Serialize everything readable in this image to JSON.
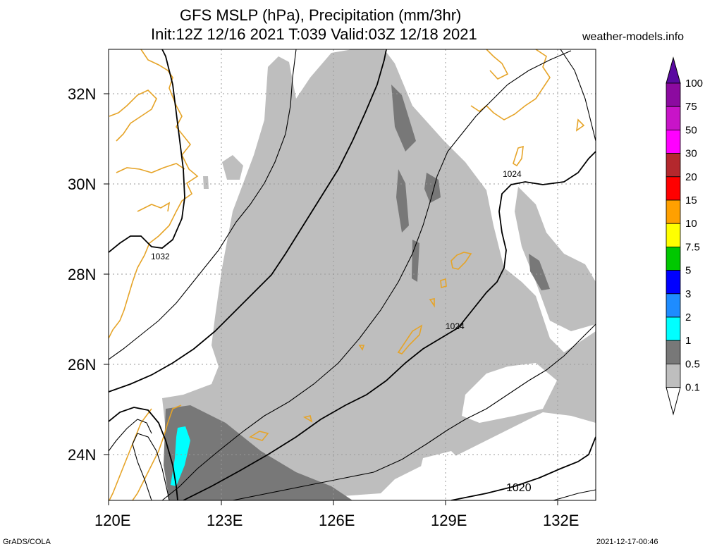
{
  "title": {
    "line1": "GFS MSLP (hPa), Precipitation (mm/3hr)",
    "line2": "Init:12Z 12/16 2021 T:039 Valid:03Z 12/18 2021",
    "site": "weather-models.info"
  },
  "footer": {
    "left": "GrADS/COLA",
    "right": "2021-12-17-00:46"
  },
  "axes": {
    "x_ticks": [
      "120E",
      "123E",
      "126E",
      "129E",
      "132E"
    ],
    "y_ticks": [
      "32N",
      "30N",
      "28N",
      "26N",
      "24N"
    ],
    "lon_range": [
      120,
      133
    ],
    "lat_range": [
      23,
      33
    ]
  },
  "colorbar": {
    "levels": [
      "100",
      "75",
      "50",
      "30",
      "20",
      "15",
      "10",
      "7.5",
      "5",
      "3",
      "2",
      "1",
      "0.5",
      "0.1"
    ],
    "colors": [
      "#5a0aa0",
      "#8c0aa0",
      "#c814c8",
      "#ff00ff",
      "#b4282d",
      "#ff0000",
      "#ffa000",
      "#ffff00",
      "#00c800",
      "#0000ff",
      "#1e8cff",
      "#00ffff",
      "#787878",
      "#bebebe",
      "#ffffff"
    ]
  },
  "isobar_labels": [
    "1032",
    "1024",
    "1024",
    "1020"
  ],
  "colors": {
    "coast": "#e6a428",
    "precip_light": "#bebebe",
    "precip_mid": "#787878",
    "precip_cyan": "#00ffff",
    "grid": "#999999"
  }
}
